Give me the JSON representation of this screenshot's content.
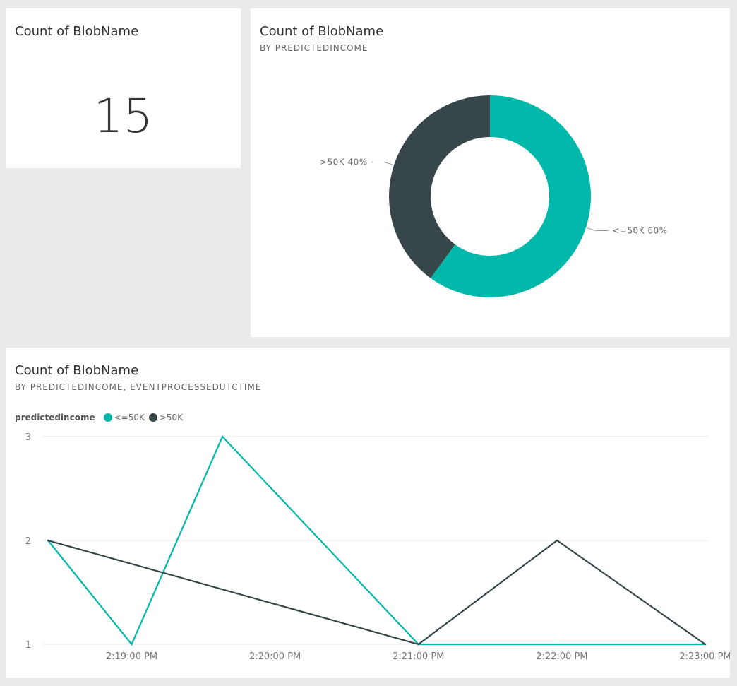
{
  "card": {
    "title": "Count of BlobName",
    "value": "15"
  },
  "donut": {
    "title": "Count of BlobName",
    "subtitle": "BY PREDICTEDINCOME"
  },
  "line": {
    "title": "Count of BlobName",
    "subtitle": "BY PREDICTEDINCOME, EVENTPROCESSEDUTCTIME",
    "legend_title": "predictedincome"
  },
  "colors": {
    "teal": "#01b8aa",
    "dark": "#374649",
    "gridline": "#e8e8e8",
    "axis_text": "#777777"
  },
  "chart_data": [
    {
      "type": "pie",
      "donut": true,
      "categories": [
        "<=50K",
        ">50K"
      ],
      "values": [
        60,
        40
      ],
      "unit": "%",
      "data_labels": [
        "<=50K 60%",
        ">50K 40%"
      ],
      "colors": [
        "#01b8aa",
        "#374649"
      ]
    },
    {
      "type": "line",
      "x": [
        "2:18:25 PM",
        "2:19:00 PM",
        "2:19:38 PM",
        "2:21:00 PM",
        "2:21:58 PM",
        "2:23:00 PM"
      ],
      "x_tick_labels": [
        "2:19:00 PM",
        "2:20:00 PM",
        "2:21:00 PM",
        "2:22:00 PM",
        "2:23:00 PM"
      ],
      "y_tick_labels": [
        "1",
        "2",
        "3"
      ],
      "ylim": [
        1,
        3
      ],
      "series": [
        {
          "name": "<=50K",
          "color": "#01b8aa",
          "values": [
            2,
            1,
            3,
            1,
            1,
            1
          ]
        },
        {
          "name": ">50K",
          "color": "#374649",
          "values": [
            2,
            null,
            null,
            1,
            2,
            1
          ]
        }
      ],
      "grid": true,
      "legend_position": "top-left"
    }
  ]
}
